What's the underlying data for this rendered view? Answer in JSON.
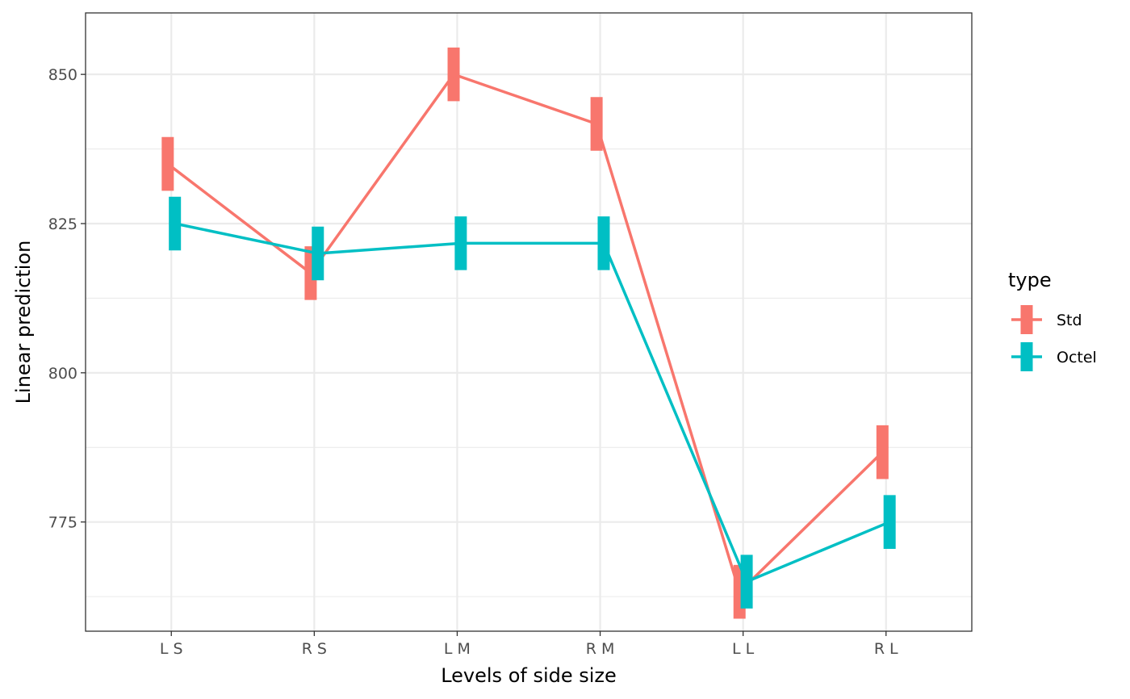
{
  "chart_data": {
    "type": "line",
    "xlabel": "Levels of side size",
    "ylabel": "Linear prediction",
    "categories": [
      "L S",
      "R S",
      "L M",
      "R M",
      "L L",
      "R L"
    ],
    "ylim": [
      756.7,
      860.3
    ],
    "y_ticks": [
      775,
      800,
      825,
      850
    ],
    "y_ticks_labels": [
      "775",
      "800",
      "825",
      "850"
    ],
    "grid": true,
    "legend": {
      "title": "type",
      "position": "right"
    },
    "series": [
      {
        "name": "Std",
        "color": "#F8766D",
        "values": [
          835.0,
          816.7,
          850.0,
          841.7,
          763.3,
          786.7
        ],
        "lower": [
          830.5,
          812.2,
          845.5,
          837.2,
          758.8,
          782.2
        ],
        "upper": [
          839.5,
          821.2,
          854.5,
          846.2,
          767.8,
          791.2
        ]
      },
      {
        "name": "Octel",
        "color": "#00BFC4",
        "values": [
          825.0,
          820.0,
          821.7,
          821.7,
          765.0,
          775.0
        ],
        "lower": [
          820.5,
          815.5,
          817.2,
          817.2,
          760.5,
          770.5
        ],
        "upper": [
          829.5,
          824.5,
          826.2,
          826.2,
          769.5,
          779.5
        ]
      }
    ]
  }
}
